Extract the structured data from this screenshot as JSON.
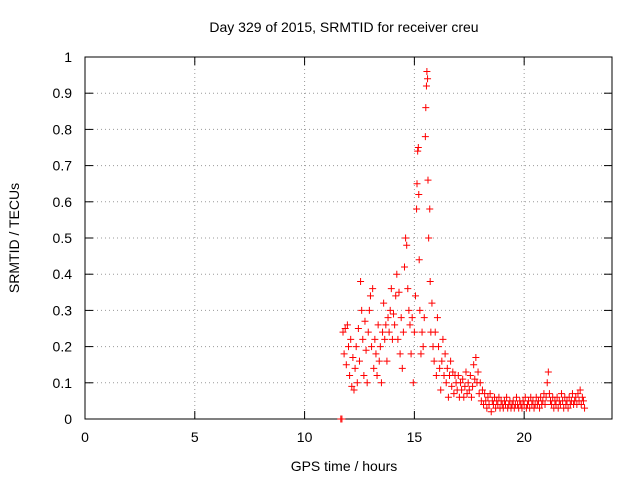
{
  "chart_data": {
    "type": "scatter",
    "title": "Day 329 of 2015, SRMTID for receiver creu",
    "xlabel": "GPS time / hours",
    "ylabel": "SRMTID / TECUs",
    "xlim": [
      0,
      24
    ],
    "ylim": [
      0,
      1
    ],
    "x_ticks": [
      "0",
      "5",
      "10",
      "15",
      "20"
    ],
    "y_ticks": [
      "0",
      "0.1",
      "0.2",
      "0.3",
      "0.4",
      "0.5",
      "0.6",
      "0.7",
      "0.8",
      "0.9",
      "1"
    ],
    "grid": true,
    "marker": "+",
    "series": [
      {
        "name": "SRMTID",
        "color": "#ff0000",
        "points": [
          [
            11.65,
            0.0
          ],
          [
            11.7,
            0.0
          ],
          [
            11.75,
            0.24
          ],
          [
            11.8,
            0.18
          ],
          [
            11.85,
            0.25
          ],
          [
            11.9,
            0.15
          ],
          [
            11.95,
            0.26
          ],
          [
            12.0,
            0.2
          ],
          [
            12.05,
            0.12
          ],
          [
            12.1,
            0.22
          ],
          [
            12.15,
            0.09
          ],
          [
            12.2,
            0.17
          ],
          [
            12.25,
            0.08
          ],
          [
            12.3,
            0.14
          ],
          [
            12.35,
            0.2
          ],
          [
            12.4,
            0.1
          ],
          [
            12.45,
            0.25
          ],
          [
            12.5,
            0.16
          ],
          [
            12.55,
            0.38
          ],
          [
            12.6,
            0.3
          ],
          [
            12.65,
            0.22
          ],
          [
            12.7,
            0.12
          ],
          [
            12.75,
            0.27
          ],
          [
            12.8,
            0.19
          ],
          [
            12.85,
            0.1
          ],
          [
            12.9,
            0.24
          ],
          [
            12.95,
            0.3
          ],
          [
            13.0,
            0.34
          ],
          [
            13.05,
            0.2
          ],
          [
            13.1,
            0.36
          ],
          [
            13.15,
            0.14
          ],
          [
            13.2,
            0.22
          ],
          [
            13.25,
            0.18
          ],
          [
            13.3,
            0.12
          ],
          [
            13.35,
            0.26
          ],
          [
            13.4,
            0.16
          ],
          [
            13.45,
            0.2
          ],
          [
            13.5,
            0.1
          ],
          [
            13.55,
            0.24
          ],
          [
            13.6,
            0.32
          ],
          [
            13.65,
            0.22
          ],
          [
            13.7,
            0.26
          ],
          [
            13.75,
            0.16
          ],
          [
            13.8,
            0.28
          ],
          [
            13.85,
            0.24
          ],
          [
            13.9,
            0.3
          ],
          [
            13.95,
            0.36
          ],
          [
            14.0,
            0.22
          ],
          [
            14.05,
            0.29
          ],
          [
            14.1,
            0.26
          ],
          [
            14.15,
            0.34
          ],
          [
            14.2,
            0.4
          ],
          [
            14.25,
            0.22
          ],
          [
            14.3,
            0.35
          ],
          [
            14.35,
            0.18
          ],
          [
            14.4,
            0.28
          ],
          [
            14.45,
            0.14
          ],
          [
            14.5,
            0.24
          ],
          [
            14.55,
            0.42
          ],
          [
            14.6,
            0.5
          ],
          [
            14.65,
            0.48
          ],
          [
            14.7,
            0.36
          ],
          [
            14.75,
            0.3
          ],
          [
            14.8,
            0.26
          ],
          [
            14.85,
            0.18
          ],
          [
            14.9,
            0.28
          ],
          [
            14.95,
            0.1
          ],
          [
            15.0,
            0.24
          ],
          [
            15.05,
            0.34
          ],
          [
            15.1,
            0.58
          ],
          [
            15.12,
            0.65
          ],
          [
            15.15,
            0.74
          ],
          [
            15.18,
            0.75
          ],
          [
            15.2,
            0.62
          ],
          [
            15.22,
            0.44
          ],
          [
            15.25,
            0.3
          ],
          [
            15.3,
            0.18
          ],
          [
            15.35,
            0.24
          ],
          [
            15.4,
            0.2
          ],
          [
            15.45,
            0.28
          ],
          [
            15.5,
            0.78
          ],
          [
            15.52,
            0.86
          ],
          [
            15.55,
            0.92
          ],
          [
            15.57,
            0.96
          ],
          [
            15.6,
            0.94
          ],
          [
            15.62,
            0.66
          ],
          [
            15.65,
            0.5
          ],
          [
            15.7,
            0.58
          ],
          [
            15.72,
            0.38
          ],
          [
            15.75,
            0.24
          ],
          [
            15.8,
            0.32
          ],
          [
            15.85,
            0.2
          ],
          [
            15.9,
            0.16
          ],
          [
            15.95,
            0.24
          ],
          [
            16.0,
            0.12
          ],
          [
            16.05,
            0.28
          ],
          [
            16.1,
            0.2
          ],
          [
            16.15,
            0.14
          ],
          [
            16.2,
            0.08
          ],
          [
            16.25,
            0.16
          ],
          [
            16.3,
            0.22
          ],
          [
            16.35,
            0.12
          ],
          [
            16.4,
            0.18
          ],
          [
            16.45,
            0.1
          ],
          [
            16.5,
            0.14
          ],
          [
            16.55,
            0.06
          ],
          [
            16.6,
            0.12
          ],
          [
            16.65,
            0.16
          ],
          [
            16.7,
            0.09
          ],
          [
            16.75,
            0.13
          ],
          [
            16.8,
            0.07
          ],
          [
            16.85,
            0.12
          ],
          [
            16.9,
            0.1
          ],
          [
            16.95,
            0.08
          ],
          [
            17.0,
            0.12
          ],
          [
            17.05,
            0.06
          ],
          [
            17.1,
            0.1
          ],
          [
            17.15,
            0.08
          ],
          [
            17.2,
            0.11
          ],
          [
            17.25,
            0.06
          ],
          [
            17.3,
            0.09
          ],
          [
            17.35,
            0.13
          ],
          [
            17.4,
            0.07
          ],
          [
            17.45,
            0.1
          ],
          [
            17.5,
            0.08
          ],
          [
            17.55,
            0.12
          ],
          [
            17.6,
            0.06
          ],
          [
            17.65,
            0.09
          ],
          [
            17.7,
            0.15
          ],
          [
            17.75,
            0.11
          ],
          [
            17.8,
            0.17
          ],
          [
            17.85,
            0.1
          ],
          [
            17.9,
            0.13
          ],
          [
            17.95,
            0.07
          ],
          [
            18.0,
            0.1
          ],
          [
            18.05,
            0.05
          ],
          [
            18.1,
            0.08
          ],
          [
            18.15,
            0.04
          ],
          [
            18.2,
            0.07
          ],
          [
            18.25,
            0.05
          ],
          [
            18.3,
            0.03
          ],
          [
            18.35,
            0.06
          ],
          [
            18.4,
            0.04
          ],
          [
            18.45,
            0.07
          ],
          [
            18.5,
            0.02
          ],
          [
            18.55,
            0.05
          ],
          [
            18.6,
            0.04
          ],
          [
            18.65,
            0.06
          ],
          [
            18.7,
            0.03
          ],
          [
            18.75,
            0.05
          ],
          [
            18.8,
            0.04
          ],
          [
            18.85,
            0.06
          ],
          [
            18.9,
            0.03
          ],
          [
            18.95,
            0.05
          ],
          [
            19.0,
            0.04
          ],
          [
            19.05,
            0.03
          ],
          [
            19.1,
            0.05
          ],
          [
            19.15,
            0.04
          ],
          [
            19.2,
            0.06
          ],
          [
            19.25,
            0.03
          ],
          [
            19.3,
            0.04
          ],
          [
            19.35,
            0.05
          ],
          [
            19.4,
            0.03
          ],
          [
            19.45,
            0.04
          ],
          [
            19.5,
            0.05
          ],
          [
            19.55,
            0.03
          ],
          [
            19.6,
            0.04
          ],
          [
            19.65,
            0.06
          ],
          [
            19.7,
            0.04
          ],
          [
            19.75,
            0.03
          ],
          [
            19.8,
            0.05
          ],
          [
            19.85,
            0.04
          ],
          [
            19.9,
            0.03
          ],
          [
            19.95,
            0.05
          ],
          [
            20.0,
            0.04
          ],
          [
            20.05,
            0.06
          ],
          [
            20.1,
            0.03
          ],
          [
            20.15,
            0.04
          ],
          [
            20.2,
            0.05
          ],
          [
            20.25,
            0.03
          ],
          [
            20.3,
            0.06
          ],
          [
            20.35,
            0.04
          ],
          [
            20.4,
            0.05
          ],
          [
            20.45,
            0.03
          ],
          [
            20.5,
            0.04
          ],
          [
            20.55,
            0.06
          ],
          [
            20.6,
            0.04
          ],
          [
            20.65,
            0.05
          ],
          [
            20.7,
            0.03
          ],
          [
            20.75,
            0.06
          ],
          [
            20.8,
            0.04
          ],
          [
            20.85,
            0.05
          ],
          [
            20.9,
            0.07
          ],
          [
            20.95,
            0.04
          ],
          [
            21.0,
            0.06
          ],
          [
            21.05,
            0.1
          ],
          [
            21.1,
            0.13
          ],
          [
            21.15,
            0.07
          ],
          [
            21.2,
            0.05
          ],
          [
            21.25,
            0.04
          ],
          [
            21.3,
            0.06
          ],
          [
            21.35,
            0.03
          ],
          [
            21.4,
            0.05
          ],
          [
            21.45,
            0.04
          ],
          [
            21.5,
            0.06
          ],
          [
            21.55,
            0.03
          ],
          [
            21.6,
            0.05
          ],
          [
            21.65,
            0.04
          ],
          [
            21.7,
            0.07
          ],
          [
            21.75,
            0.05
          ],
          [
            21.8,
            0.03
          ],
          [
            21.85,
            0.06
          ],
          [
            21.9,
            0.04
          ],
          [
            21.95,
            0.05
          ],
          [
            22.0,
            0.03
          ],
          [
            22.05,
            0.06
          ],
          [
            22.1,
            0.04
          ],
          [
            22.15,
            0.05
          ],
          [
            22.2,
            0.07
          ],
          [
            22.25,
            0.04
          ],
          [
            22.3,
            0.05
          ],
          [
            22.35,
            0.06
          ],
          [
            22.4,
            0.04
          ],
          [
            22.45,
            0.07
          ],
          [
            22.5,
            0.05
          ],
          [
            22.55,
            0.08
          ],
          [
            22.6,
            0.04
          ],
          [
            22.65,
            0.06
          ],
          [
            22.7,
            0.05
          ],
          [
            22.75,
            0.03
          ]
        ]
      }
    ]
  }
}
